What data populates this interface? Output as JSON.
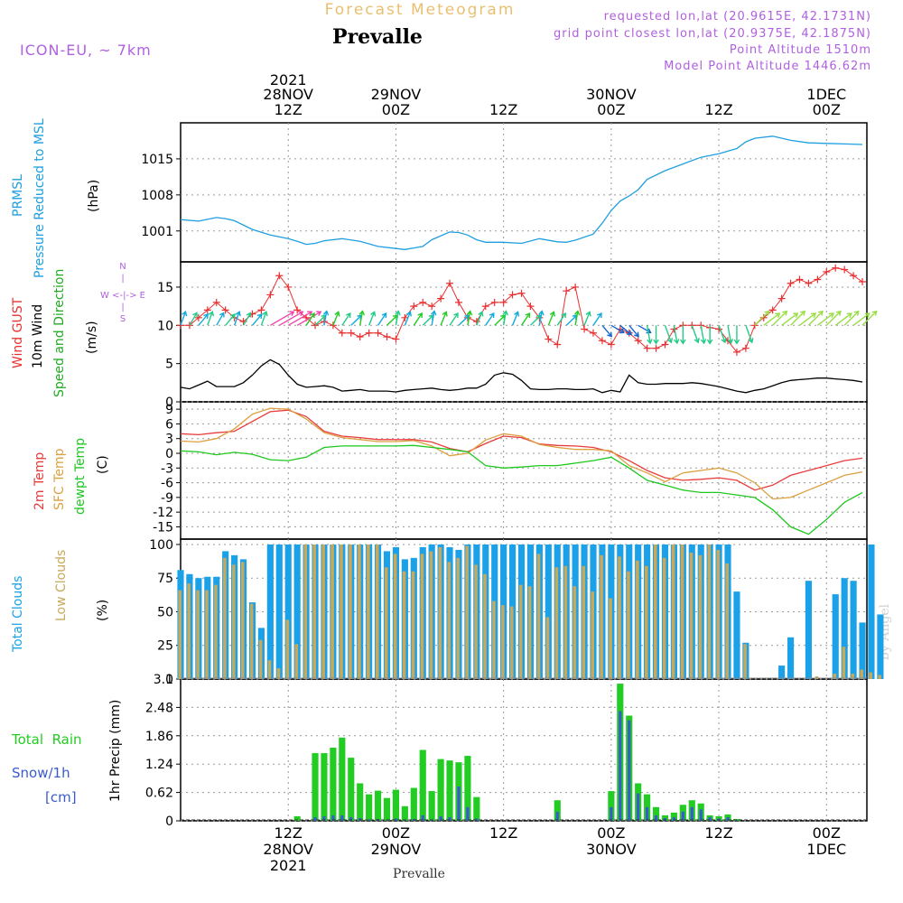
{
  "header": {
    "subtitle": "Forecast Meteogram",
    "station": "Prevalle",
    "model": "ICON-EU, ~ 7km",
    "requested": "requested lon,lat (20.9615E, 42.1731N)",
    "gridpoint": "grid point closest lon,lat (20.9375E, 42.1875N)",
    "altitude": "Point Altitude 1510m",
    "model_altitude": "Model Point Altitude 1446.62m",
    "footer_station": "Prevalle",
    "watermark": "by Angel"
  },
  "colors": {
    "pressure": "#1f9fdf",
    "gust": "#e83030",
    "wind10": "#000000",
    "t2m": "#e83c3c",
    "sfc": "#dca040",
    "dewpt": "#1ec81e",
    "total_clouds": "#1ba1e8",
    "low_clouds": "#c8a85a",
    "rain": "#22cc22",
    "snow": "#3a5ad0",
    "header_purple": "#b060e0",
    "subtitle_gold": "#e8c070"
  },
  "time_axis": {
    "top_labels": [
      {
        "hour": 12,
        "line1": "2021",
        "line2": "28NOV",
        "line3": "12Z"
      },
      {
        "hour": 24,
        "line1": "",
        "line2": "29NOV",
        "line3": "00Z"
      },
      {
        "hour": 36,
        "line1": "",
        "line2": "",
        "line3": "12Z"
      },
      {
        "hour": 48,
        "line1": "",
        "line2": "30NOV",
        "line3": "00Z"
      },
      {
        "hour": 60,
        "line1": "",
        "line2": "",
        "line3": "12Z"
      },
      {
        "hour": 72,
        "line1": "",
        "line2": "1DEC",
        "line3": "00Z"
      }
    ],
    "bottom_labels": [
      {
        "hour": 12,
        "line1": "12Z",
        "line2": "28NOV",
        "line3": "2021"
      },
      {
        "hour": 24,
        "line1": "00Z",
        "line2": "29NOV",
        "line3": ""
      },
      {
        "hour": 36,
        "line1": "12Z",
        "line2": "",
        "line3": ""
      },
      {
        "hour": 48,
        "line1": "00Z",
        "line2": "30NOV",
        "line3": ""
      },
      {
        "hour": 60,
        "line1": "12Z",
        "line2": "",
        "line3": ""
      },
      {
        "hour": 72,
        "line1": "00Z",
        "line2": "1DEC",
        "line3": ""
      }
    ]
  },
  "chart_data": [
    {
      "type": "line",
      "panel": "pressure",
      "labels": {
        "a": "PRMSL",
        "b": "Pressure Reduced to MSL",
        "unit": "(hPa)"
      },
      "yticks": [
        1001,
        1008,
        1015
      ],
      "ylim": [
        995,
        1022
      ],
      "x": [
        0,
        2,
        4,
        5,
        6,
        8,
        10,
        12,
        13,
        14,
        15,
        16,
        18,
        20,
        22,
        24,
        25,
        26,
        27,
        28,
        30,
        31,
        32,
        33,
        34,
        36,
        38,
        40,
        42,
        43,
        44,
        46,
        47,
        48,
        49,
        50,
        51,
        52,
        54,
        56,
        58,
        60,
        62,
        63,
        64,
        66,
        68,
        70,
        72,
        74,
        76
      ],
      "values": [
        1003.2,
        1002.9,
        1003.6,
        1003.4,
        1003.0,
        1001.3,
        1000.2,
        999.5,
        999.0,
        998.4,
        998.6,
        999.1,
        999.5,
        999.0,
        998.0,
        997.6,
        997.4,
        997.7,
        998.0,
        999.3,
        1000.8,
        1000.7,
        1000.2,
        999.3,
        998.8,
        998.8,
        998.6,
        999.5,
        998.9,
        998.8,
        999.2,
        1000.4,
        1002.5,
        1005.0,
        1006.8,
        1007.8,
        1009.0,
        1011.0,
        1012.7,
        1014.0,
        1015.3,
        1016.0,
        1017.0,
        1018.3,
        1019.0,
        1019.4,
        1018.6,
        1018.1,
        1018.0,
        1017.9,
        1017.8
      ]
    },
    {
      "type": "line",
      "panel": "wind",
      "labels": {
        "a": "Wind GUST",
        "b": "10m Wind",
        "c": "Speed and Direction",
        "unit": "(m/s)",
        "compass": "N\n|\nW <-|-> E\n|\nS"
      },
      "yticks": [
        0,
        5,
        10,
        15
      ],
      "ylim": [
        0,
        18.3
      ],
      "x": [
        0,
        1,
        2,
        3,
        4,
        5,
        6,
        7,
        8,
        9,
        10,
        11,
        12,
        13,
        14,
        15,
        16,
        17,
        18,
        19,
        20,
        21,
        22,
        23,
        24,
        25,
        26,
        27,
        28,
        29,
        30,
        31,
        32,
        33,
        34,
        35,
        36,
        37,
        38,
        39,
        40,
        41,
        42,
        43,
        44,
        45,
        46,
        47,
        48,
        49,
        50,
        51,
        52,
        53,
        54,
        55,
        56,
        57,
        58,
        59,
        60,
        61,
        62,
        63,
        64,
        65,
        66,
        67,
        68,
        69,
        70,
        71,
        72,
        73,
        74,
        75,
        76
      ],
      "series": [
        {
          "name": "Wind GUST",
          "values": [
            10,
            10,
            11,
            12,
            13,
            12,
            11,
            10.5,
            11.5,
            12,
            14,
            16.5,
            15,
            12,
            11,
            10,
            10.5,
            10,
            9,
            9,
            8.5,
            9,
            9,
            8.5,
            8.2,
            11,
            12.5,
            13,
            12.5,
            13.5,
            15.5,
            13,
            11,
            10.5,
            12.5,
            13,
            13,
            14,
            14.2,
            12.5,
            11,
            8.2,
            7.5,
            14.5,
            15,
            9.5,
            9,
            8,
            7.5,
            9.5,
            9,
            8,
            7,
            7,
            7.5,
            9.5,
            10,
            10,
            10,
            9.7,
            9.5,
            8,
            6.5,
            7,
            10,
            11,
            12,
            13.5,
            15.5,
            16,
            15.5,
            16,
            17,
            17.5,
            17.3,
            16.5,
            15.7
          ]
        },
        {
          "name": "10m Wind",
          "values": [
            1.9,
            1.7,
            2.2,
            2.7,
            2.0,
            2.0,
            2.0,
            2.5,
            3.5,
            4.7,
            5.5,
            4.9,
            3.5,
            2.3,
            1.9,
            2.0,
            2.1,
            1.9,
            1.4,
            1.5,
            1.6,
            1.4,
            1.4,
            1.4,
            1.3,
            1.5,
            1.6,
            1.7,
            1.8,
            1.6,
            1.5,
            1.6,
            1.8,
            1.8,
            2.3,
            3.5,
            3.8,
            3.6,
            2.8,
            1.7,
            1.6,
            1.6,
            1.7,
            1.7,
            1.6,
            1.6,
            1.7,
            1.2,
            1.5,
            1.3,
            3.5,
            2.5,
            2.3,
            2.3,
            2.4,
            2.4,
            2.4,
            2.5,
            2.4,
            2.2,
            2.0,
            1.7,
            1.4,
            1.2,
            1.5,
            1.7,
            2.1,
            2.5,
            2.8,
            2.9,
            3.0,
            3.1,
            3.1,
            3.0,
            2.9,
            2.8,
            2.6
          ]
        }
      ]
    },
    {
      "type": "line",
      "panel": "temperature",
      "labels": {
        "a": "2m Temp",
        "b": "SFC Temp",
        "c": "dewpt Temp",
        "unit": "(C)"
      },
      "yticks": [
        9,
        6,
        3,
        0,
        -3,
        -6,
        -9,
        -12,
        -15
      ],
      "ylim": [
        -17.5,
        10.5
      ],
      "x": [
        0,
        2,
        4,
        6,
        8,
        10,
        12,
        14,
        16,
        18,
        20,
        22,
        24,
        26,
        28,
        30,
        32,
        34,
        36,
        38,
        40,
        42,
        44,
        46,
        48,
        50,
        52,
        54,
        56,
        58,
        60,
        62,
        64,
        66,
        68,
        70,
        72,
        74,
        76
      ],
      "series": [
        {
          "name": "2m Temp",
          "values": [
            4,
            3.8,
            4.2,
            4.5,
            6.5,
            8.5,
            8.8,
            7.5,
            4.5,
            3.5,
            3.2,
            2.8,
            2.8,
            2.8,
            2.3,
            1.0,
            0.3,
            2.0,
            3.5,
            3.2,
            1.9,
            1.6,
            1.5,
            1.2,
            0.3,
            -1.5,
            -3.5,
            -5.0,
            -5.5,
            -5.3,
            -5.0,
            -5.5,
            -7.5,
            -6.5,
            -4.5,
            -3.5,
            -2.5,
            -1.5,
            -1.0
          ]
        },
        {
          "name": "SFC Temp",
          "values": [
            2.5,
            2.3,
            3.0,
            5.0,
            8.0,
            9.2,
            9.0,
            7.0,
            4.2,
            3.2,
            2.8,
            2.4,
            2.4,
            2.6,
            1.5,
            -0.5,
            0.0,
            2.7,
            4.0,
            3.5,
            1.8,
            1.2,
            0.8,
            0.8,
            0.5,
            -2.5,
            -4.0,
            -5.8,
            -4.0,
            -3.5,
            -3.0,
            -4.0,
            -6.0,
            -9.3,
            -9.0,
            -7.5,
            -6.0,
            -4.5,
            -3.8
          ]
        },
        {
          "name": "dewpt Temp",
          "values": [
            0.5,
            0.3,
            -0.3,
            0.2,
            -0.2,
            -1.3,
            -1.5,
            -0.8,
            1.2,
            1.5,
            1.5,
            1.5,
            1.5,
            1.6,
            1.2,
            0.8,
            0.3,
            -2.5,
            -3.0,
            -2.8,
            -2.5,
            -2.5,
            -2.0,
            -1.5,
            -0.8,
            -3.0,
            -5.5,
            -6.5,
            -7.5,
            -8.0,
            -8.0,
            -8.5,
            -9.0,
            -11.5,
            -15.0,
            -16.5,
            -13.5,
            -10.0,
            -8.0
          ]
        }
      ]
    },
    {
      "type": "bar",
      "panel": "clouds",
      "labels": {
        "a": "Total Clouds",
        "b": "Low Clouds",
        "unit": "(%)"
      },
      "yticks": [
        0,
        25,
        50,
        75,
        100
      ],
      "ylim": [
        0,
        104
      ],
      "x_start": 0,
      "x_step": 1,
      "series": [
        {
          "name": "Total Clouds",
          "values": [
            81,
            78,
            75,
            76,
            76,
            95,
            92,
            89,
            57,
            38,
            100,
            100,
            100,
            100,
            100,
            100,
            100,
            100,
            100,
            100,
            100,
            100,
            100,
            95,
            98,
            89,
            90,
            98,
            100,
            100,
            98,
            96,
            100,
            100,
            100,
            100,
            100,
            100,
            100,
            100,
            100,
            100,
            100,
            100,
            100,
            100,
            100,
            100,
            100,
            100,
            100,
            100,
            100,
            100,
            100,
            100,
            100,
            100,
            100,
            100,
            100,
            100,
            65,
            27,
            0,
            0,
            0,
            10,
            31,
            0,
            73,
            0,
            0,
            63,
            75,
            73,
            42,
            100,
            48
          ]
        },
        {
          "name": "Low Clouds",
          "values": [
            66,
            71,
            66,
            66,
            70,
            90,
            85,
            87,
            56,
            29,
            14,
            8,
            44,
            26,
            100,
            100,
            100,
            100,
            100,
            100,
            100,
            100,
            100,
            83,
            93,
            80,
            80,
            93,
            95,
            98,
            87,
            90,
            99,
            85,
            78,
            58,
            55,
            54,
            70,
            69,
            93,
            46,
            83,
            84,
            69,
            84,
            65,
            92,
            60,
            91,
            80,
            88,
            84,
            100,
            90,
            100,
            100,
            94,
            92,
            100,
            96,
            86,
            0,
            26,
            0,
            0,
            0,
            0,
            0,
            0,
            0,
            2,
            0,
            4,
            24,
            4,
            7,
            5,
            3
          ]
        }
      ]
    },
    {
      "type": "bar",
      "panel": "precip",
      "labels": {
        "a": "Total  Rain",
        "b": "Snow/1h",
        "c": "[cm]",
        "unit": "1hr Precip (mm)"
      },
      "yticks": [
        "0",
        "0.62",
        "1.24",
        "1.86",
        "2.48",
        "3.1"
      ],
      "ylim": [
        0,
        3.1
      ],
      "x_start": 0,
      "x_step": 1,
      "series": [
        {
          "name": "Total Rain",
          "values": [
            0,
            0,
            0,
            0,
            0,
            0,
            0,
            0,
            0,
            0,
            0,
            0,
            0,
            0.1,
            0,
            1.48,
            1.48,
            1.6,
            1.82,
            1.38,
            0.82,
            0.58,
            0.66,
            0.5,
            0.68,
            0.32,
            0.72,
            1.55,
            0.65,
            1.35,
            1.32,
            1.28,
            1.42,
            0.52,
            0,
            0,
            0,
            0,
            0,
            0,
            0,
            0,
            0.45,
            0,
            0,
            0,
            0,
            0,
            0.65,
            3.0,
            2.3,
            0.82,
            0.58,
            0.3,
            0.12,
            0.18,
            0.35,
            0.45,
            0.38,
            0.12,
            0.1,
            0.14,
            0.04,
            0,
            0,
            0,
            0,
            0,
            0,
            0,
            0,
            0,
            0,
            0,
            0,
            0,
            0
          ]
        },
        {
          "name": "Snow/1h",
          "values": [
            0,
            0,
            0,
            0,
            0,
            0,
            0,
            0,
            0,
            0,
            0,
            0,
            0,
            0,
            0,
            0.08,
            0.1,
            0.12,
            0.12,
            0.08,
            0.06,
            0.03,
            0.04,
            0.02,
            0.05,
            0.01,
            0.04,
            0.12,
            0.03,
            0.1,
            0.08,
            0.75,
            0.3,
            0.05,
            0,
            0,
            0,
            0,
            0,
            0,
            0,
            0,
            0.2,
            0,
            0,
            0,
            0,
            0,
            0.3,
            2.4,
            2.2,
            0.6,
            0.3,
            0.12,
            0.06,
            0.08,
            0.2,
            0.3,
            0.25,
            0.08,
            0.05,
            0.08,
            0.01,
            0,
            0,
            0,
            0,
            0,
            0,
            0,
            0,
            0,
            0,
            0,
            0,
            0,
            0
          ]
        }
      ]
    }
  ]
}
